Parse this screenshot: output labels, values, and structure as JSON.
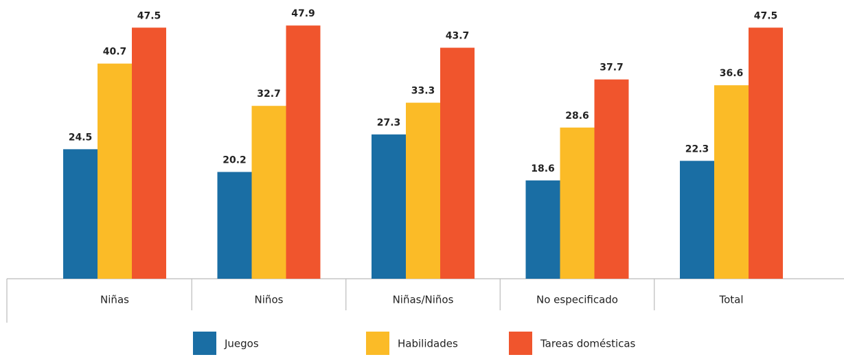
{
  "chart_data": {
    "type": "bar",
    "categories": [
      "Niñas",
      "Niños",
      "Niñas/Niños",
      "No especificado",
      "Total"
    ],
    "series": [
      {
        "name": "Juegos",
        "color": "#1a6ea4",
        "values": [
          24.5,
          20.2,
          27.3,
          18.6,
          22.3
        ]
      },
      {
        "name": "Habilidades",
        "color": "#fbbb27",
        "values": [
          40.7,
          32.7,
          33.3,
          28.6,
          36.6
        ]
      },
      {
        "name": "Tareas domésticas",
        "color": "#f0552d",
        "values": [
          47.5,
          47.9,
          43.7,
          37.7,
          47.5
        ]
      }
    ],
    "ylim": [
      0,
      50
    ]
  }
}
